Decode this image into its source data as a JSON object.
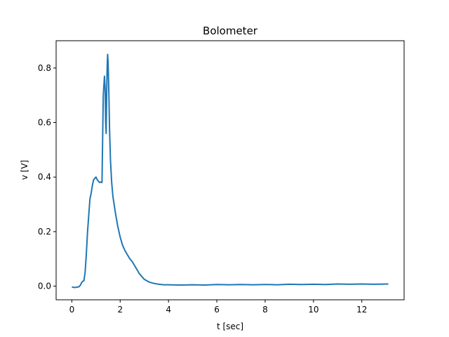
{
  "chart_data": {
    "type": "line",
    "title": "Bolometer",
    "xlabel": "t [sec]",
    "ylabel": "v [V]",
    "xlim": [
      -0.65,
      13.75
    ],
    "ylim": [
      -0.05,
      0.9
    ],
    "xticks": [
      0,
      2,
      4,
      6,
      8,
      10,
      12
    ],
    "yticks": [
      0.0,
      0.2,
      0.4,
      0.6,
      0.8
    ],
    "xtick_labels": [
      "0",
      "2",
      "4",
      "6",
      "8",
      "10",
      "12"
    ],
    "ytick_labels": [
      "0.0",
      "0.2",
      "0.4",
      "0.6",
      "0.8"
    ],
    "grid": false,
    "series": [
      {
        "color": "#1f77b4",
        "x": [
          0.0,
          0.1,
          0.2,
          0.3,
          0.35,
          0.4,
          0.45,
          0.5,
          0.55,
          0.6,
          0.65,
          0.7,
          0.75,
          0.8,
          0.85,
          0.9,
          0.95,
          1.0,
          1.05,
          1.1,
          1.15,
          1.2,
          1.25,
          1.3,
          1.35,
          1.38,
          1.4,
          1.42,
          1.44,
          1.46,
          1.48,
          1.5,
          1.52,
          1.54,
          1.56,
          1.6,
          1.65,
          1.7,
          1.8,
          1.9,
          2.0,
          2.1,
          2.2,
          2.3,
          2.4,
          2.5,
          2.6,
          2.7,
          2.8,
          3.0,
          3.2,
          3.4,
          3.6,
          3.8,
          4.0,
          4.5,
          5.0,
          5.5,
          6.0,
          6.5,
          7.0,
          7.5,
          8.0,
          8.5,
          9.0,
          9.5,
          10.0,
          10.5,
          11.0,
          11.5,
          12.0,
          12.5,
          13.1
        ],
        "y": [
          -0.003,
          -0.005,
          -0.004,
          -0.002,
          0.003,
          0.012,
          0.018,
          0.02,
          0.05,
          0.12,
          0.2,
          0.26,
          0.32,
          0.34,
          0.37,
          0.39,
          0.395,
          0.4,
          0.39,
          0.385,
          0.38,
          0.382,
          0.38,
          0.7,
          0.77,
          0.72,
          0.6,
          0.56,
          0.7,
          0.8,
          0.85,
          0.82,
          0.76,
          0.68,
          0.58,
          0.46,
          0.38,
          0.33,
          0.27,
          0.22,
          0.18,
          0.15,
          0.13,
          0.115,
          0.1,
          0.09,
          0.075,
          0.06,
          0.045,
          0.025,
          0.015,
          0.01,
          0.007,
          0.005,
          0.005,
          0.004,
          0.005,
          0.004,
          0.006,
          0.005,
          0.006,
          0.005,
          0.006,
          0.005,
          0.007,
          0.006,
          0.007,
          0.006,
          0.008,
          0.007,
          0.008,
          0.007,
          0.008
        ]
      }
    ]
  }
}
